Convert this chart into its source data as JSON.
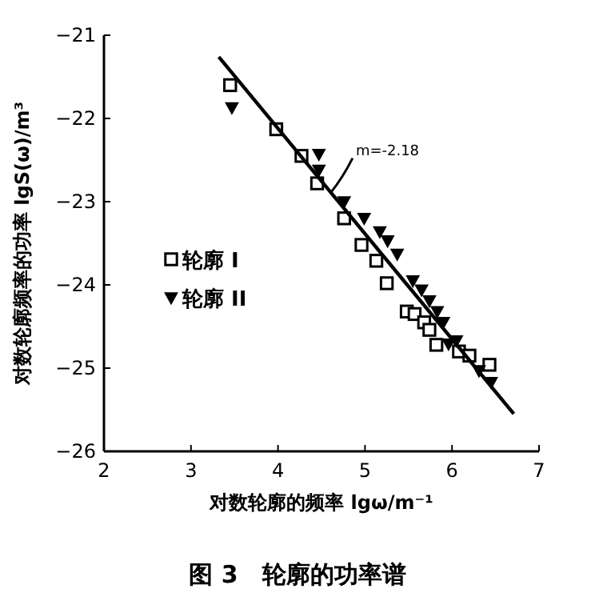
{
  "chart_data": {
    "type": "scatter",
    "title": "图 3　轮廓的功率谱",
    "xlabel": "对数轮廓的频率 lgω/m⁻¹",
    "ylabel": "对数轮廓频率的功率 lgS(ω)/m³",
    "xlim": [
      2,
      7
    ],
    "ylim": [
      -26,
      -21
    ],
    "xticks": [
      2,
      3,
      4,
      5,
      6,
      7
    ],
    "yticks": [
      -26,
      -25,
      -24,
      -23,
      -22,
      -21
    ],
    "legend": "left",
    "grid": false,
    "annotations": [
      {
        "text": "m=-2.18",
        "x": 4.6,
        "y": -22.9
      }
    ],
    "series": [
      {
        "name": "轮廓 I",
        "marker": "square",
        "color": "#000000",
        "x": [
          3.45,
          3.98,
          4.27,
          4.45,
          4.76,
          4.96,
          5.13,
          5.25,
          5.48,
          5.57,
          5.68,
          5.74,
          5.82,
          6.08,
          6.2,
          6.43
        ],
        "values": [
          -21.6,
          -22.13,
          -22.45,
          -22.78,
          -23.2,
          -23.52,
          -23.71,
          -23.98,
          -24.32,
          -24.35,
          -24.45,
          -24.54,
          -24.72,
          -24.8,
          -24.85,
          -24.96
        ]
      },
      {
        "name": "轮廓 II",
        "marker": "triangle",
        "color": "#000000",
        "x": [
          3.47,
          4.47,
          4.47,
          4.76,
          4.99,
          5.17,
          5.26,
          5.37,
          5.55,
          5.65,
          5.74,
          5.83,
          5.9,
          5.96,
          6.05,
          6.31,
          6.45
        ],
        "values": [
          -21.87,
          -22.43,
          -22.62,
          -23.0,
          -23.2,
          -23.36,
          -23.47,
          -23.63,
          -23.95,
          -24.06,
          -24.19,
          -24.32,
          -24.45,
          -24.71,
          -24.67,
          -25.03,
          -25.17
        ]
      },
      {
        "type": "line",
        "color": "#000000",
        "line_style": "solid",
        "x": [
          3.32,
          6.71
        ],
        "values": [
          -21.26,
          -25.55
        ]
      }
    ]
  }
}
